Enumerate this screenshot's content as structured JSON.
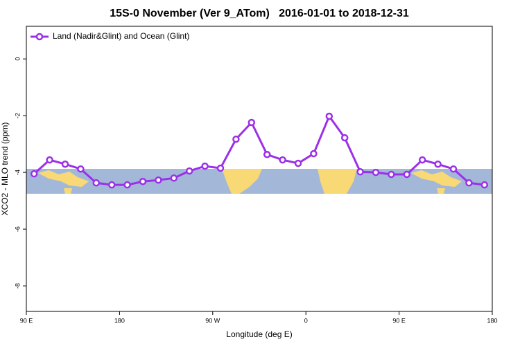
{
  "chart_data": {
    "type": "line",
    "title": "15S-0 November (Ver 9_ATom)   2016-01-01 to 2018-12-31",
    "x_label": "Longitude (deg E)",
    "y_label": "XCO2 - MLO trend (ppm)",
    "x": [
      97.5,
      112.5,
      127.5,
      142.5,
      157.5,
      172.5,
      187.5,
      202.5,
      217.5,
      232.5,
      247.5,
      262.5,
      277.5,
      292.5,
      307.5,
      322.5,
      337.5,
      352.5,
      367.5,
      382.5,
      397.5,
      412.5,
      427.5,
      442.5,
      457.5,
      472.5,
      487.5,
      502.5,
      517.5,
      532.5
    ],
    "series": [
      {
        "name": "Land (Nadir&Glint) and Ocean (Glint)",
        "color": "#9b30e8",
        "values": [
          -4.05,
          -3.56,
          -3.71,
          -3.88,
          -4.37,
          -4.44,
          -4.44,
          -4.32,
          -4.27,
          -4.2,
          -3.95,
          -3.78,
          -3.85,
          -2.83,
          -2.24,
          -3.37,
          -3.56,
          -3.68,
          -3.34,
          -2.02,
          -2.78,
          -3.98,
          -4.0,
          -4.07,
          -4.07,
          -3.56,
          -3.71,
          -3.88,
          -4.37,
          -4.44
        ]
      }
    ],
    "xlim": [
      90,
      540
    ],
    "xticks": [
      {
        "value": 90,
        "label": "90 E"
      },
      180,
      {
        "value": 270,
        "label": "90 W"
      },
      {
        "value": 360,
        "label": "0"
      },
      {
        "value": 450,
        "label": "90 E"
      },
      {
        "value": 540,
        "label": "180"
      }
    ],
    "ylim": [
      -8.9,
      1.15
    ],
    "yticks": [
      0,
      -2,
      -4,
      -6,
      -8
    ],
    "legend": "top-left"
  }
}
